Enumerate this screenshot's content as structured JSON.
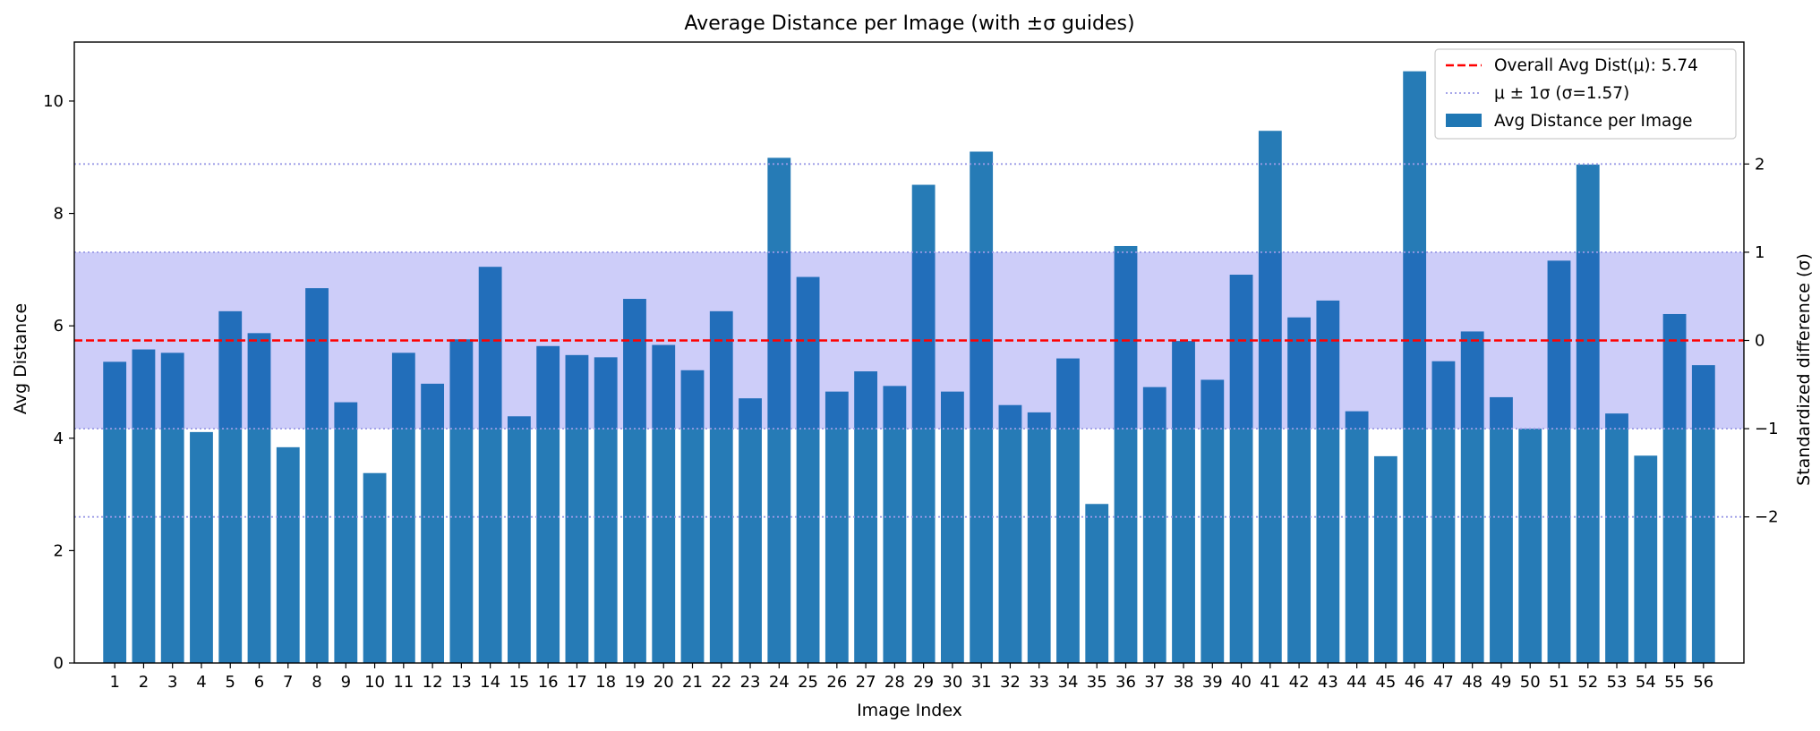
{
  "chart_data": {
    "type": "bar",
    "title": "Average Distance per Image (with ±σ guides)",
    "xlabel": "Image Index",
    "ylabel": "Avg Distance",
    "y2label": "Standardized difference (σ)",
    "ylim": [
      0,
      11.05
    ],
    "yticks": [
      0,
      2,
      4,
      6,
      8,
      10
    ],
    "y2ticks": [
      -2,
      -1,
      0,
      1,
      2
    ],
    "mean": 5.74,
    "sigma": 1.57,
    "bar_color": "#1f77b4",
    "mean_color": "#ff0000",
    "sigma_band_color": "#e5e5fc",
    "sigma_line_color": "#9a9ae6",
    "legend_position": "top-right",
    "legend": [
      {
        "type": "dashed",
        "label": "Overall Avg Dist(μ): 5.74"
      },
      {
        "type": "dotted",
        "label": "μ ± 1σ (σ=1.57)"
      },
      {
        "type": "patch",
        "label": "Avg Distance per Image"
      }
    ],
    "categories": [
      "1",
      "2",
      "3",
      "4",
      "5",
      "6",
      "7",
      "8",
      "9",
      "10",
      "11",
      "12",
      "13",
      "14",
      "15",
      "16",
      "17",
      "18",
      "19",
      "20",
      "21",
      "22",
      "23",
      "24",
      "25",
      "26",
      "27",
      "28",
      "29",
      "30",
      "31",
      "32",
      "33",
      "34",
      "35",
      "36",
      "37",
      "38",
      "39",
      "40",
      "41",
      "42",
      "43",
      "44",
      "45",
      "46",
      "47",
      "48",
      "49",
      "50",
      "51",
      "52",
      "53",
      "54",
      "55",
      "56"
    ],
    "values": [
      5.36,
      5.58,
      5.52,
      4.11,
      6.26,
      5.87,
      3.84,
      6.67,
      4.64,
      3.38,
      5.52,
      4.97,
      5.76,
      7.05,
      4.39,
      5.64,
      5.48,
      5.44,
      6.48,
      5.66,
      5.21,
      6.26,
      4.71,
      8.99,
      6.87,
      4.83,
      5.19,
      4.93,
      8.51,
      4.83,
      9.1,
      4.59,
      4.46,
      5.42,
      2.83,
      7.42,
      4.91,
      5.73,
      5.04,
      6.91,
      9.47,
      6.15,
      6.45,
      4.48,
      3.68,
      10.53,
      5.37,
      5.9,
      4.73,
      4.17,
      7.16,
      8.87,
      4.44,
      3.69,
      6.21,
      5.3
    ]
  }
}
